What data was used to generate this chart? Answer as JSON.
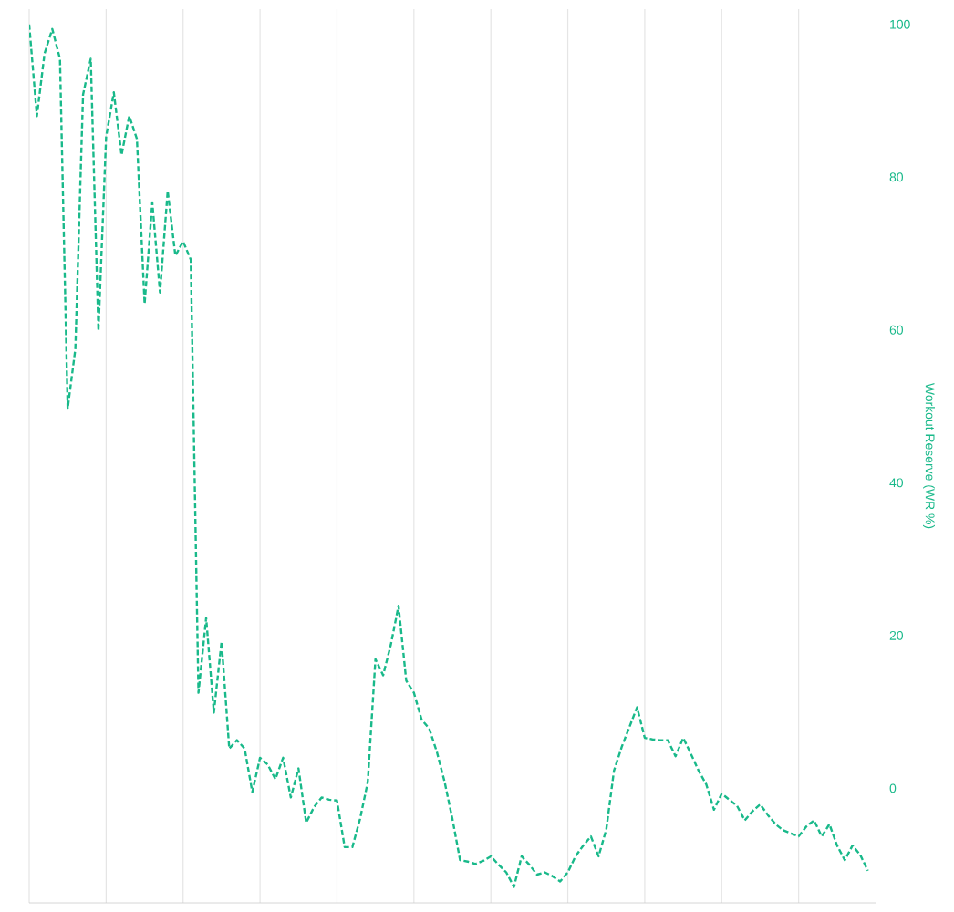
{
  "chart_data": {
    "type": "line",
    "ylabel": "Workout Reserve (WR %)",
    "color": "#19b98a",
    "line_style": "dashed",
    "grid": "x",
    "ylim": [
      -15,
      102
    ],
    "yticks": [
      0,
      20,
      40,
      60,
      80,
      100
    ],
    "categories": [
      null,
      null,
      null,
      null,
      null,
      null,
      null,
      null,
      null,
      null,
      null,
      null,
      null,
      null,
      null,
      null,
      null,
      null,
      null,
      null,
      null,
      null,
      null,
      null,
      null,
      null,
      null,
      null,
      null,
      null,
      null,
      null,
      null,
      null,
      null,
      null,
      null,
      null,
      null,
      null,
      null,
      null,
      null,
      null,
      null,
      null,
      null,
      null,
      null,
      null,
      null,
      null,
      null,
      null,
      null,
      null,
      null,
      null,
      null,
      null,
      null,
      null,
      null,
      null,
      null,
      null,
      null,
      null,
      null,
      null,
      null,
      null,
      null,
      null,
      null,
      null,
      null,
      null,
      null,
      null,
      null,
      null,
      null,
      null,
      null,
      null,
      null,
      null,
      null,
      null,
      null,
      null,
      null,
      null,
      null,
      null,
      null,
      null,
      null,
      null,
      null,
      null,
      null,
      null,
      null,
      null,
      null,
      null,
      null,
      null
    ],
    "values": [
      100,
      88,
      96.2,
      99.4,
      95.5,
      49.7,
      57.5,
      90.8,
      95.5,
      59.9,
      85.3,
      91.1,
      82.9,
      88,
      85,
      63.4,
      76.7,
      64.9,
      78.2,
      69.7,
      71.6,
      69.2,
      12.5,
      22.3,
      9.9,
      19.2,
      5.2,
      6.3,
      5.2,
      -0.5,
      4.0,
      3.1,
      1.2,
      4.0,
      -1.2,
      2.6,
      -4.5,
      -2.5,
      -1.2,
      -1.5,
      -1.6,
      -7.7,
      -7.7,
      -4,
      0.8,
      16.9,
      14.8,
      18.8,
      23.9,
      14.1,
      12.5,
      9,
      7.8,
      4.7,
      0.8,
      -4,
      -9.4,
      -9.6,
      -9.9,
      -9.5,
      -8.9,
      -10,
      -11,
      -12.9,
      -8.9,
      -10,
      -11.3,
      -11,
      -11.5,
      -12.2,
      -11,
      -8.9,
      -7.5,
      -6.3,
      -8.9,
      -5.4,
      2.3,
      5.4,
      8,
      10.6,
      6.6,
      6.4,
      6.3,
      6.3,
      4.2,
      6.6,
      4.5,
      2.3,
      0.5,
      -2.8,
      -0.7,
      -1.5,
      -2.3,
      -4.2,
      -3,
      -2.1,
      -3.5,
      -4.7,
      -5.5,
      -5.9,
      -6.3,
      -5,
      -4.2,
      -6.3,
      -4.7,
      -7.5,
      -9.4,
      -7.5,
      -8.7,
      -10.8
    ]
  }
}
